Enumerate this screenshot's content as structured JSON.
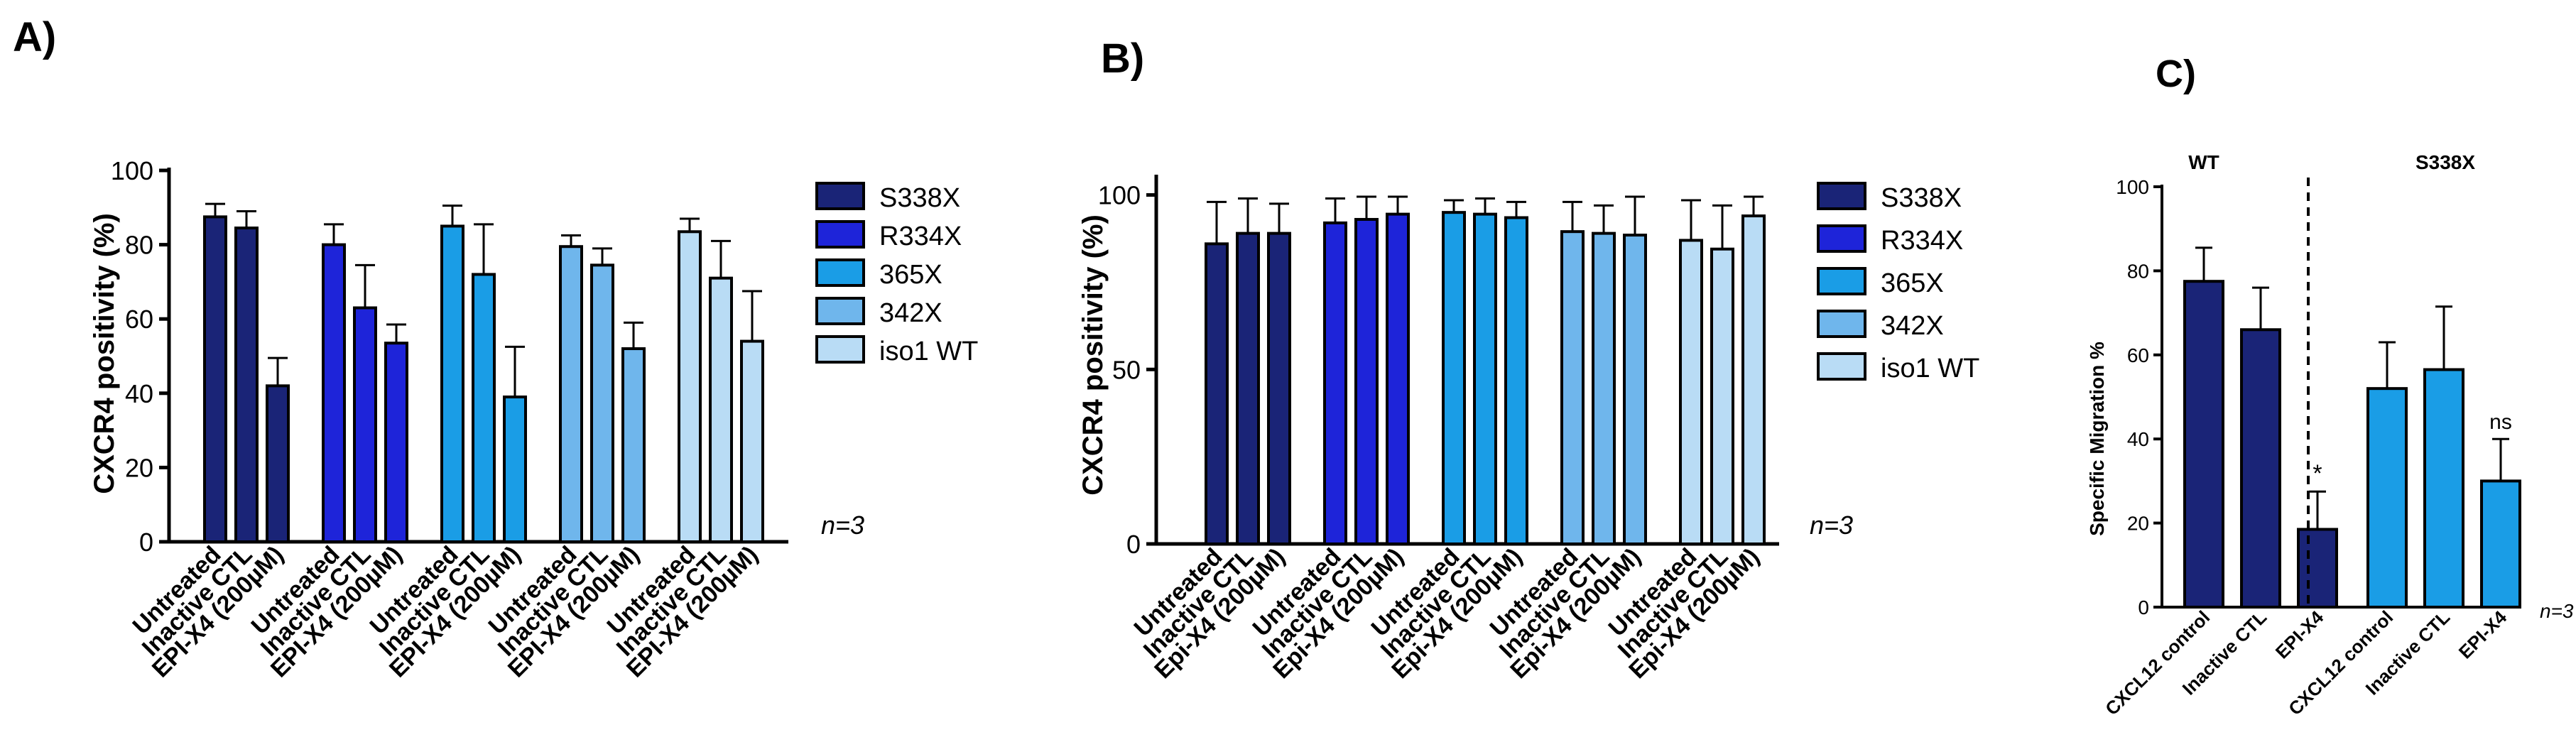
{
  "colors": {
    "S338X": "#1a2477",
    "R334X": "#1e24d9",
    "365X": "#1a9de6",
    "342X": "#6fb6ec",
    "iso1 WT": "#b9dcf5",
    "C_WT": "#1a2477",
    "C_S338X": "#1a9de6",
    "axis": "#000000",
    "bar_edge": "#000000"
  },
  "chart_data": [
    {
      "id": "A",
      "panel_label": "A)",
      "type": "bar",
      "ylabel": "CXCR4 positivity (%)",
      "ylim": [
        0,
        100
      ],
      "yticks": [
        "0",
        "20",
        "40",
        "60",
        "80",
        "100"
      ],
      "ytick_values": [
        0,
        20,
        40,
        60,
        80,
        100
      ],
      "categories": [
        "Untreated",
        "Inactive CTL",
        "EPI-X4 (200µM)"
      ],
      "series": [
        {
          "name": "S338X",
          "values": [
            87.5,
            84.5,
            42.0
          ],
          "errors": [
            3.5,
            4.5,
            7.5
          ]
        },
        {
          "name": "R334X",
          "values": [
            80.0,
            63.0,
            53.5
          ],
          "errors": [
            5.5,
            11.5,
            5.0
          ]
        },
        {
          "name": "365X",
          "values": [
            85.0,
            72.0,
            39.0
          ],
          "errors": [
            5.5,
            13.5,
            13.5
          ]
        },
        {
          "name": "342X",
          "values": [
            79.5,
            74.5,
            52.0
          ],
          "errors": [
            3.0,
            4.5,
            7.0
          ]
        },
        {
          "name": "iso1 WT",
          "values": [
            83.5,
            71.0,
            54.0
          ],
          "errors": [
            3.5,
            10.0,
            13.5
          ]
        }
      ],
      "legend": [
        "S338X",
        "R334X",
        "365X",
        "342X",
        "iso1 WT"
      ],
      "legend_position": "right",
      "annotation": "n=3"
    },
    {
      "id": "B",
      "panel_label": "B)",
      "type": "bar",
      "ylabel": "CXCR4 positivity (%)",
      "ylim": [
        0,
        105
      ],
      "yticks": [
        "0",
        "50",
        "100"
      ],
      "ytick_values": [
        0,
        50,
        100
      ],
      "categories": [
        "Untreated",
        "Inactive CTL",
        "Epi-X4 (200µM)"
      ],
      "series": [
        {
          "name": "S338X",
          "values": [
            86.0,
            89.0,
            89.0
          ],
          "errors": [
            12.0,
            10.0,
            8.5
          ]
        },
        {
          "name": "R334X",
          "values": [
            92.0,
            93.0,
            94.5
          ],
          "errors": [
            7.0,
            6.5,
            5.0
          ]
        },
        {
          "name": "365X",
          "values": [
            95.0,
            94.5,
            93.5
          ],
          "errors": [
            3.5,
            4.5,
            4.5
          ]
        },
        {
          "name": "342X",
          "values": [
            89.5,
            89.0,
            88.5
          ],
          "errors": [
            8.5,
            8.0,
            11.0
          ]
        },
        {
          "name": "iso1 WT",
          "values": [
            87.0,
            84.5,
            94.0
          ],
          "errors": [
            11.5,
            12.5,
            5.5
          ]
        }
      ],
      "legend": [
        "S338X",
        "R334X",
        "365X",
        "342X",
        "iso1 WT"
      ],
      "legend_position": "right",
      "annotation": "n=3"
    },
    {
      "id": "C",
      "panel_label": "C)",
      "type": "bar",
      "ylabel": "Specific Migration %",
      "ylim": [
        0,
        100
      ],
      "yticks": [
        "0",
        "20",
        "40",
        "60",
        "80",
        "100"
      ],
      "ytick_values": [
        0,
        20,
        40,
        60,
        80,
        100
      ],
      "categories": [
        "CXCL12 control",
        "Inactive CTL",
        "EPI-X4",
        "CXCL12 control",
        "Inactive CTL",
        "EPI-X4"
      ],
      "groups": [
        {
          "name": "WT",
          "values": [
            77.5,
            66.0,
            18.5
          ],
          "errors": [
            8.0,
            10.0,
            9.0
          ],
          "markers": [
            "",
            "",
            "*"
          ]
        },
        {
          "name": "S338X",
          "values": [
            52.0,
            56.5,
            30.0
          ],
          "errors": [
            11.0,
            15.0,
            10.0
          ],
          "markers": [
            "",
            "",
            "ns"
          ]
        }
      ],
      "annotation": "n=3"
    }
  ]
}
